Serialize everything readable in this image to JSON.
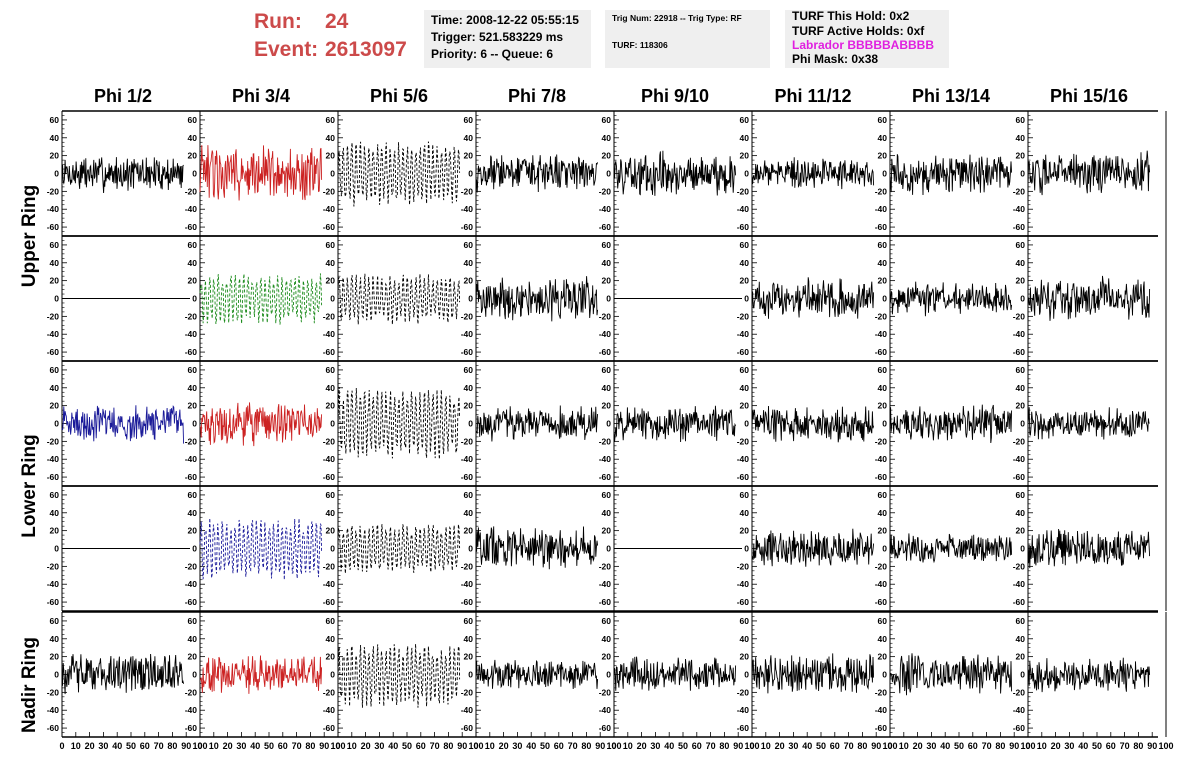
{
  "header": {
    "run_label": "Run:",
    "run_value": "24",
    "event_label": "Event:",
    "event_value": "2613097",
    "time": "Time: 2008-12-22 05:55:15",
    "trigger": "Trigger: 521.583229 ms",
    "priority": "Priority: 6 -- Queue: 6",
    "trig_num": "Trig Num: 22918 -- Trig Type: RF",
    "turf": "TURF: 118306",
    "turf_hold": "TURF This Hold: 0x2",
    "turf_active": "TURF Active Holds: 0xf",
    "labrador": "Labrador BBBBBABBBB",
    "phi_mask": "Phi Mask: 0x38",
    "colors": {
      "run": "#cc4a4a",
      "labrador": "#e020e0"
    }
  },
  "columns": [
    "Phi 1/2",
    "Phi 3/4",
    "Phi 5/6",
    "Phi 7/8",
    "Phi 9/10",
    "Phi 11/12",
    "Phi 13/14",
    "Phi 15/16"
  ],
  "rows": [
    "Upper Ring",
    "Lower Ring",
    "Nadir Ring"
  ],
  "chart_data": {
    "type": "line",
    "description_source": "grid of 5 rows x 8 columns of waveform panels",
    "ylim": [
      -70,
      70
    ],
    "xlim": [
      0,
      100
    ],
    "yticks": [
      60,
      40,
      20,
      0,
      -20,
      -40,
      -60
    ],
    "xticks": [
      0,
      10,
      20,
      30,
      40,
      50,
      60,
      70,
      80,
      90,
      100
    ],
    "xtick_labels": [
      "0",
      "10",
      "20",
      "30",
      "40",
      "50",
      "60",
      "70",
      "80",
      "90",
      "100"
    ],
    "grid": false,
    "colors": {
      "black": "#000000",
      "red": "#cc2222",
      "green": "#1a8a1a",
      "blue": "#1a1a99"
    },
    "panels": [
      [
        "noise:black:solid:12",
        "noise:red:solid:18",
        "noise:black:dash:18",
        "noise:black:solid:12",
        "noise:black:solid:14",
        "noise:black:solid:10",
        "noise:black:solid:13",
        "noise:black:solid:14"
      ],
      [
        "flat:black:solid:0",
        "noise:green:dash:14",
        "noise:black:dash:14",
        "noise:black:solid:14",
        "flat:black:solid:0",
        "noise:black:solid:13",
        "noise:black:solid:11",
        "noise:black:solid:14"
      ],
      [
        "noise:blue:solid:12",
        "noise:red:solid:14",
        "noise:black:dash:20",
        "noise:black:solid:11",
        "noise:black:solid:12",
        "noise:black:solid:12",
        "noise:black:solid:12",
        "noise:black:solid:10"
      ],
      [
        "flat:black:solid:0",
        "noise:blue:dash:17",
        "noise:black:dash:14",
        "noise:black:solid:14",
        "flat:black:solid:0",
        "noise:black:solid:12",
        "noise:black:solid:10",
        "noise:black:solid:12"
      ],
      [
        "noise:black:solid:14",
        "noise:red:solid:12",
        "noise:black:dash:18",
        "noise:black:solid:10",
        "noise:black:solid:11",
        "noise:black:solid:13",
        "noise:black:solid:13",
        "noise:black:solid:11"
      ]
    ]
  }
}
